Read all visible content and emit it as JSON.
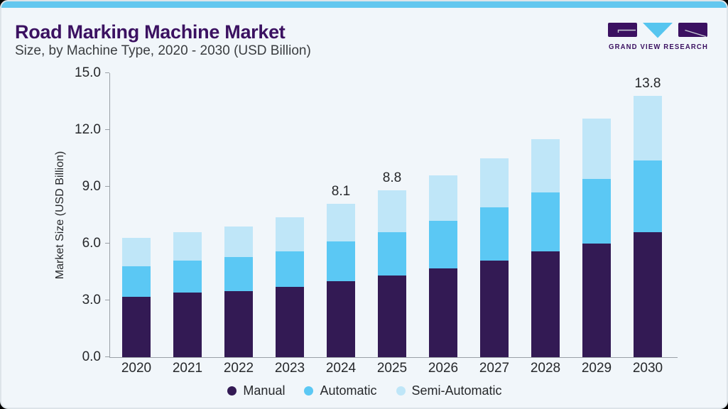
{
  "page": {
    "background": "#000000",
    "card_background": "#f1f6fa",
    "accent_color": "#63c7ef",
    "axis_color": "#9aa0a6",
    "text_color": "#26282b",
    "brand_purple": "#3b1161",
    "brand_blue": "#56c5ef"
  },
  "header": {
    "title": "Road Marking Machine Market",
    "subtitle": "Size, by Machine Type, 2020 - 2030 (USD Billion)"
  },
  "logo": {
    "brand": "GRAND VIEW RESEARCH",
    "icon": "gvr-monogram"
  },
  "chart_data": {
    "type": "bar",
    "stacked": true,
    "title": "Road Marking Machine Market Size, by Machine Type, 2020 - 2030 (USD Billion)",
    "categories": [
      "2020",
      "2021",
      "2022",
      "2023",
      "2024",
      "2025",
      "2026",
      "2027",
      "2028",
      "2029",
      "2030"
    ],
    "series": [
      {
        "name": "Manual",
        "color": "#331a54",
        "values": [
          3.2,
          3.4,
          3.5,
          3.7,
          4.0,
          4.3,
          4.7,
          5.1,
          5.6,
          6.0,
          6.6
        ]
      },
      {
        "name": "Automatic",
        "color": "#5bc8f4",
        "values": [
          1.6,
          1.7,
          1.8,
          1.9,
          2.1,
          2.3,
          2.5,
          2.8,
          3.1,
          3.4,
          3.8
        ]
      },
      {
        "name": "Semi-Automatic",
        "color": "#bfe6f8",
        "values": [
          1.5,
          1.5,
          1.6,
          1.8,
          2.0,
          2.2,
          2.4,
          2.6,
          2.8,
          3.2,
          3.4
        ]
      }
    ],
    "totals": [
      6.3,
      6.6,
      6.9,
      7.4,
      8.1,
      8.8,
      9.6,
      10.5,
      11.5,
      12.6,
      13.8
    ],
    "bar_labels": {
      "2024": "8.1",
      "2025": "8.8",
      "2030": "13.8"
    },
    "xlabel": "",
    "ylabel": "Market Size (USD Billion)",
    "yticks": [
      "0.0",
      "3.0",
      "6.0",
      "9.0",
      "12.0",
      "15.0"
    ],
    "ylim": [
      0,
      15
    ],
    "grid": false,
    "legend_position": "bottom"
  }
}
